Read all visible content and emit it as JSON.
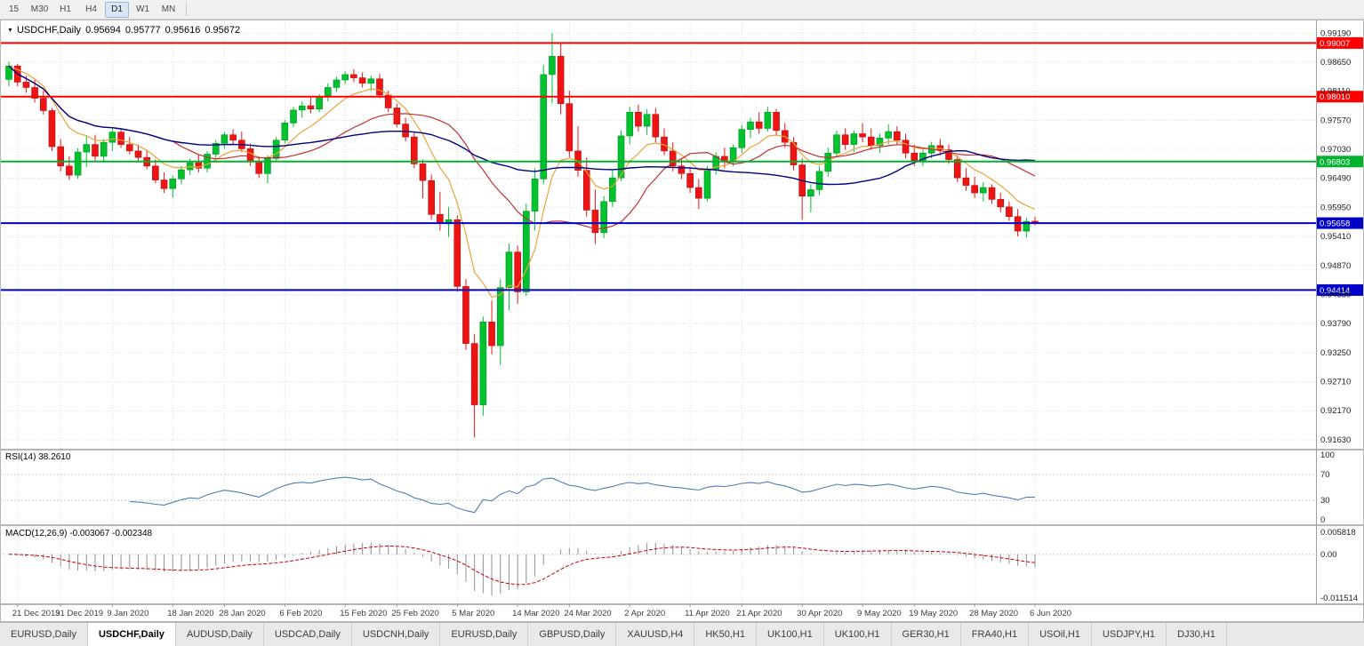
{
  "toolbar": {
    "timeframes": [
      {
        "label": "15",
        "active": false
      },
      {
        "label": "M30",
        "active": false
      },
      {
        "label": "H1",
        "active": false
      },
      {
        "label": "H4",
        "active": false
      },
      {
        "label": "D1",
        "active": true
      },
      {
        "label": "W1",
        "active": false
      },
      {
        "label": "MN",
        "active": false
      }
    ]
  },
  "chart": {
    "title": {
      "menu_icon": "▼",
      "symbol": "USDCHF,Daily",
      "o": "0.95694",
      "h": "0.95777",
      "l": "0.95616",
      "c": "0.95672"
    },
    "price_range": {
      "min": 0.9148,
      "max": 0.9941
    },
    "y_axis_labels": [
      "0.99190",
      "0.98650",
      "0.98110",
      "0.97570",
      "0.97030",
      "0.96490",
      "0.95950",
      "0.95410",
      "0.94870",
      "0.94330",
      "0.93790",
      "0.93250",
      "0.92710",
      "0.92170",
      "0.91630"
    ],
    "levels": [
      {
        "value": 0.99007,
        "label": "0.99007",
        "color": "#FF0000",
        "width": 2,
        "kind": "resistance"
      },
      {
        "value": 0.9801,
        "label": "0.98010",
        "color": "#FF0000",
        "width": 2,
        "kind": "resistance"
      },
      {
        "value": 0.96803,
        "label": "0.96803",
        "color": "#00B22D",
        "width": 2,
        "kind": "pivot"
      },
      {
        "value": 0.95658,
        "label": "0.95658",
        "color": "#0000C8",
        "width": 2,
        "kind": "support"
      },
      {
        "value": 0.94414,
        "label": "0.94414",
        "color": "#0000C8",
        "width": 2,
        "kind": "support"
      }
    ]
  },
  "indicators": {
    "rsi": {
      "label": "RSI(14) 38.2610",
      "period": 14,
      "current": "38.2610",
      "levels": [
        70,
        30
      ],
      "axis": [
        {
          "text": "100",
          "value": 100
        },
        {
          "text": "70",
          "value": 70
        },
        {
          "text": "30",
          "value": 30
        },
        {
          "text": "0",
          "value": 0
        }
      ]
    },
    "macd": {
      "label": "MACD(12,26,9) -0.003067 -0.002348",
      "params": "12,26,9",
      "current_macd": "-0.003067",
      "current_signal": "-0.002348",
      "range": {
        "min": -0.011514,
        "max": 0.005818
      },
      "axis": [
        {
          "text": "0.005818",
          "value": 0.005818
        },
        {
          "text": "0.00",
          "value": 0
        },
        {
          "text": "-0.011514",
          "value": -0.011514
        }
      ]
    }
  },
  "x_axis_labels": [
    {
      "text": "21 Dec 2019",
      "date": "2019-12-21"
    },
    {
      "text": "31 Dec 2019",
      "date": "2019-12-31"
    },
    {
      "text": "9 Jan 2020",
      "date": "2020-01-09"
    },
    {
      "text": "18 Jan 2020",
      "date": "2020-01-18"
    },
    {
      "text": "28 Jan 2020",
      "date": "2020-01-28"
    },
    {
      "text": "6 Feb 2020",
      "date": "2020-02-06"
    },
    {
      "text": "15 Feb 2020",
      "date": "2020-02-15"
    },
    {
      "text": "25 Feb 2020",
      "date": "2020-02-25"
    },
    {
      "text": "5 Mar 2020",
      "date": "2020-03-05"
    },
    {
      "text": "14 Mar 2020",
      "date": "2020-03-14"
    },
    {
      "text": "24 Mar 2020",
      "date": "2020-03-24"
    },
    {
      "text": "2 Apr 2020",
      "date": "2020-04-02"
    },
    {
      "text": "11 Apr 2020",
      "date": "2020-04-11"
    },
    {
      "text": "21 Apr 2020",
      "date": "2020-04-21"
    },
    {
      "text": "30 Apr 2020",
      "date": "2020-04-30"
    },
    {
      "text": "9 May 2020",
      "date": "2020-05-09"
    },
    {
      "text": "19 May 2020",
      "date": "2020-05-19"
    },
    {
      "text": "28 May 2020",
      "date": "2020-05-28"
    },
    {
      "text": "6 Jun 2020",
      "date": "2020-06-06"
    }
  ],
  "tabs": {
    "active_index": 1,
    "items": [
      "EURUSD,Daily",
      "USDCHF,Daily",
      "AUDUSD,Daily",
      "USDCAD,Daily",
      "USDCNH,Daily",
      "EURUSD,Daily",
      "GBPUSD,Daily",
      "XAUUSD,H4",
      "HK50,H1",
      "UK100,H1",
      "UK100,H1",
      "GER30,H1",
      "FRA40,H1",
      "USOil,H1",
      "USDJPY,H1",
      "DJ30,H1"
    ]
  },
  "colors": {
    "up": "#00C22E",
    "up_border": "#009422",
    "down": "#EE1414",
    "down_border": "#B80F0F",
    "ma_fast": "#E8A33C",
    "ma_mid": "#C03030",
    "ma_slow": "#000080",
    "rsi_line": "#4D7EB8",
    "macd_hist": "#909090",
    "macd_signal": "#C80000",
    "grid": "#DCDCDC",
    "separator": "#9E9E9E",
    "axis_text": "#1C1C1C",
    "date_text": "#3C3C3C"
  },
  "chart_data": {
    "type": "candlestick",
    "symbol": "USDCHF",
    "timeframe": "Daily",
    "title": "USDCHF,Daily 0.95694 0.95777 0.95616 0.95672",
    "ylim": [
      0.9148,
      0.9941
    ],
    "columns": [
      "date",
      "open",
      "high",
      "low",
      "close"
    ],
    "overlays": [
      {
        "name": "ma-fast",
        "type": "ema",
        "period": 8,
        "color": "#E8A33C"
      },
      {
        "name": "ma-mid",
        "type": "sma",
        "period": 20,
        "color": "#C03030"
      },
      {
        "name": "ma-slow",
        "type": "sma",
        "period": 50,
        "color": "#000080"
      }
    ],
    "bars": [
      [
        "2019-12-20",
        0.9833,
        0.9866,
        0.982,
        0.9858
      ],
      [
        "2019-12-23",
        0.9858,
        0.9862,
        0.982,
        0.9828
      ],
      [
        "2019-12-24",
        0.9828,
        0.984,
        0.9808,
        0.9818
      ],
      [
        "2019-12-26",
        0.9818,
        0.9832,
        0.979,
        0.9798
      ],
      [
        "2019-12-27",
        0.9798,
        0.9812,
        0.9768,
        0.9775
      ],
      [
        "2019-12-30",
        0.9775,
        0.978,
        0.97,
        0.9708
      ],
      [
        "2019-12-31",
        0.9708,
        0.9722,
        0.9662,
        0.9672
      ],
      [
        "2020-01-02",
        0.9672,
        0.969,
        0.9646,
        0.9655
      ],
      [
        "2020-01-03",
        0.9655,
        0.9705,
        0.9648,
        0.9698
      ],
      [
        "2020-01-06",
        0.9698,
        0.9728,
        0.967,
        0.9712
      ],
      [
        "2020-01-07",
        0.9712,
        0.973,
        0.968,
        0.969
      ],
      [
        "2020-01-08",
        0.969,
        0.9722,
        0.9678,
        0.9716
      ],
      [
        "2020-01-09",
        0.9716,
        0.9742,
        0.97,
        0.9735
      ],
      [
        "2020-01-10",
        0.9735,
        0.974,
        0.9706,
        0.9712
      ],
      [
        "2020-01-13",
        0.9712,
        0.9726,
        0.9694,
        0.97
      ],
      [
        "2020-01-14",
        0.97,
        0.9712,
        0.968,
        0.9688
      ],
      [
        "2020-01-15",
        0.9688,
        0.97,
        0.9666,
        0.9672
      ],
      [
        "2020-01-16",
        0.9672,
        0.9684,
        0.964,
        0.9646
      ],
      [
        "2020-01-17",
        0.9646,
        0.966,
        0.9622,
        0.963
      ],
      [
        "2020-01-20",
        0.963,
        0.9655,
        0.9613,
        0.9648
      ],
      [
        "2020-01-21",
        0.9648,
        0.9672,
        0.9638,
        0.9665
      ],
      [
        "2020-01-22",
        0.9665,
        0.9686,
        0.9655,
        0.9678
      ],
      [
        "2020-01-23",
        0.9678,
        0.9694,
        0.966,
        0.9668
      ],
      [
        "2020-01-24",
        0.9668,
        0.97,
        0.966,
        0.9694
      ],
      [
        "2020-01-27",
        0.9694,
        0.972,
        0.9686,
        0.9714
      ],
      [
        "2020-01-28",
        0.9714,
        0.9735,
        0.9704,
        0.973
      ],
      [
        "2020-01-29",
        0.973,
        0.974,
        0.9712,
        0.972
      ],
      [
        "2020-01-30",
        0.972,
        0.9736,
        0.9698,
        0.9704
      ],
      [
        "2020-01-31",
        0.9704,
        0.9714,
        0.9672,
        0.968
      ],
      [
        "2020-02-03",
        0.968,
        0.969,
        0.965,
        0.9658
      ],
      [
        "2020-02-04",
        0.9658,
        0.9692,
        0.964,
        0.9686
      ],
      [
        "2020-02-05",
        0.9686,
        0.9726,
        0.968,
        0.972
      ],
      [
        "2020-02-06",
        0.972,
        0.9758,
        0.9714,
        0.9752
      ],
      [
        "2020-02-07",
        0.9752,
        0.9782,
        0.9744,
        0.9776
      ],
      [
        "2020-02-10",
        0.9776,
        0.9792,
        0.9762,
        0.9784
      ],
      [
        "2020-02-11",
        0.9784,
        0.98,
        0.977,
        0.9778
      ],
      [
        "2020-02-12",
        0.9778,
        0.9806,
        0.9772,
        0.98
      ],
      [
        "2020-02-13",
        0.98,
        0.9826,
        0.9792,
        0.9818
      ],
      [
        "2020-02-14",
        0.9818,
        0.9838,
        0.981,
        0.9832
      ],
      [
        "2020-02-17",
        0.9832,
        0.9848,
        0.9824,
        0.9842
      ],
      [
        "2020-02-18",
        0.9842,
        0.9852,
        0.9828,
        0.9836
      ],
      [
        "2020-02-19",
        0.9836,
        0.9846,
        0.9818,
        0.9826
      ],
      [
        "2020-02-20",
        0.9826,
        0.984,
        0.9812,
        0.9834
      ],
      [
        "2020-02-21",
        0.9834,
        0.9843,
        0.9798,
        0.9804
      ],
      [
        "2020-02-24",
        0.9804,
        0.9812,
        0.9772,
        0.978
      ],
      [
        "2020-02-25",
        0.978,
        0.9788,
        0.9744,
        0.975
      ],
      [
        "2020-02-26",
        0.975,
        0.9762,
        0.9718,
        0.9726
      ],
      [
        "2020-02-27",
        0.9726,
        0.9734,
        0.9668,
        0.9676
      ],
      [
        "2020-02-28",
        0.9676,
        0.9684,
        0.9612,
        0.9645
      ],
      [
        "2020-03-02",
        0.9645,
        0.9656,
        0.9572,
        0.9582
      ],
      [
        "2020-03-03",
        0.9582,
        0.9624,
        0.9552,
        0.9566
      ],
      [
        "2020-03-04",
        0.9566,
        0.9596,
        0.954,
        0.9572
      ],
      [
        "2020-03-05",
        0.9572,
        0.958,
        0.9438,
        0.9448
      ],
      [
        "2020-03-06",
        0.9448,
        0.9462,
        0.933,
        0.9342
      ],
      [
        "2020-03-09",
        0.9342,
        0.936,
        0.9167,
        0.9228
      ],
      [
        "2020-03-10",
        0.9228,
        0.9392,
        0.9208,
        0.9382
      ],
      [
        "2020-03-11",
        0.9382,
        0.9422,
        0.9322,
        0.9338
      ],
      [
        "2020-03-12",
        0.9338,
        0.9462,
        0.9302,
        0.9446
      ],
      [
        "2020-03-13",
        0.9446,
        0.9528,
        0.9404,
        0.9512
      ],
      [
        "2020-03-16",
        0.9512,
        0.9524,
        0.9416,
        0.9438
      ],
      [
        "2020-03-17",
        0.9438,
        0.9602,
        0.943,
        0.9588
      ],
      [
        "2020-03-18",
        0.9588,
        0.9668,
        0.9552,
        0.9648
      ],
      [
        "2020-03-19",
        0.9648,
        0.986,
        0.9638,
        0.9842
      ],
      [
        "2020-03-20",
        0.9842,
        0.9919,
        0.9788,
        0.9876
      ],
      [
        "2020-03-23",
        0.9876,
        0.9901,
        0.9768,
        0.9788
      ],
      [
        "2020-03-24",
        0.9788,
        0.9812,
        0.9688,
        0.97
      ],
      [
        "2020-03-25",
        0.97,
        0.9746,
        0.9652,
        0.9664
      ],
      [
        "2020-03-26",
        0.9664,
        0.9688,
        0.9578,
        0.959
      ],
      [
        "2020-03-27",
        0.959,
        0.9628,
        0.9527,
        0.9548
      ],
      [
        "2020-03-30",
        0.9548,
        0.9616,
        0.9538,
        0.9606
      ],
      [
        "2020-03-31",
        0.9606,
        0.9664,
        0.9596,
        0.965
      ],
      [
        "2020-04-01",
        0.965,
        0.9738,
        0.9644,
        0.9728
      ],
      [
        "2020-04-02",
        0.9728,
        0.9782,
        0.9712,
        0.9772
      ],
      [
        "2020-04-03",
        0.9772,
        0.9786,
        0.9736,
        0.9746
      ],
      [
        "2020-04-06",
        0.9746,
        0.9778,
        0.973,
        0.9768
      ],
      [
        "2020-04-07",
        0.9768,
        0.978,
        0.9716,
        0.9726
      ],
      [
        "2020-04-08",
        0.9726,
        0.9742,
        0.9692,
        0.97
      ],
      [
        "2020-04-09",
        0.97,
        0.9716,
        0.9662,
        0.9672
      ],
      [
        "2020-04-10",
        0.9672,
        0.9686,
        0.9648,
        0.9658
      ],
      [
        "2020-04-13",
        0.9658,
        0.967,
        0.9622,
        0.9632
      ],
      [
        "2020-04-14",
        0.9632,
        0.9648,
        0.9592,
        0.9612
      ],
      [
        "2020-04-15",
        0.9612,
        0.9672,
        0.9606,
        0.9666
      ],
      [
        "2020-04-16",
        0.9666,
        0.9698,
        0.9656,
        0.969
      ],
      [
        "2020-04-17",
        0.969,
        0.9706,
        0.9668,
        0.968
      ],
      [
        "2020-04-20",
        0.968,
        0.9712,
        0.9672,
        0.9706
      ],
      [
        "2020-04-21",
        0.9706,
        0.9748,
        0.9696,
        0.974
      ],
      [
        "2020-04-22",
        0.974,
        0.9762,
        0.9724,
        0.9754
      ],
      [
        "2020-04-23",
        0.9754,
        0.9772,
        0.9732,
        0.9742
      ],
      [
        "2020-04-24",
        0.9742,
        0.9782,
        0.9736,
        0.9772
      ],
      [
        "2020-04-27",
        0.9772,
        0.9778,
        0.9728,
        0.9738
      ],
      [
        "2020-04-28",
        0.9738,
        0.9752,
        0.9706,
        0.9716
      ],
      [
        "2020-04-29",
        0.9716,
        0.9726,
        0.9664,
        0.9674
      ],
      [
        "2020-04-30",
        0.9674,
        0.9686,
        0.9572,
        0.9616
      ],
      [
        "2020-05-01",
        0.9616,
        0.9638,
        0.9586,
        0.9628
      ],
      [
        "2020-05-04",
        0.9628,
        0.9672,
        0.9618,
        0.9662
      ],
      [
        "2020-05-05",
        0.9662,
        0.9706,
        0.9652,
        0.9696
      ],
      [
        "2020-05-06",
        0.9696,
        0.9738,
        0.9688,
        0.973
      ],
      [
        "2020-05-07",
        0.973,
        0.9742,
        0.9702,
        0.9712
      ],
      [
        "2020-05-08",
        0.9712,
        0.9738,
        0.9698,
        0.9732
      ],
      [
        "2020-05-11",
        0.9732,
        0.9752,
        0.9716,
        0.9726
      ],
      [
        "2020-05-12",
        0.9726,
        0.9742,
        0.9702,
        0.971
      ],
      [
        "2020-05-13",
        0.971,
        0.9732,
        0.9696,
        0.9724
      ],
      [
        "2020-05-14",
        0.9724,
        0.975,
        0.9712,
        0.9736
      ],
      [
        "2020-05-15",
        0.9736,
        0.9746,
        0.9712,
        0.972
      ],
      [
        "2020-05-18",
        0.972,
        0.9732,
        0.9686,
        0.9696
      ],
      [
        "2020-05-19",
        0.9696,
        0.9712,
        0.9672,
        0.9682
      ],
      [
        "2020-05-20",
        0.9682,
        0.9702,
        0.9672,
        0.9696
      ],
      [
        "2020-05-21",
        0.9696,
        0.9717,
        0.9686,
        0.971
      ],
      [
        "2020-05-22",
        0.971,
        0.9722,
        0.9692,
        0.9702
      ],
      [
        "2020-05-25",
        0.9702,
        0.9712,
        0.9676,
        0.9684
      ],
      [
        "2020-05-26",
        0.9684,
        0.9692,
        0.9642,
        0.965
      ],
      [
        "2020-05-27",
        0.965,
        0.9668,
        0.9626,
        0.9636
      ],
      [
        "2020-05-28",
        0.9636,
        0.9652,
        0.9612,
        0.9622
      ],
      [
        "2020-05-29",
        0.9622,
        0.9642,
        0.9606,
        0.9632
      ],
      [
        "2020-06-01",
        0.9632,
        0.9638,
        0.9602,
        0.961
      ],
      [
        "2020-06-02",
        0.961,
        0.9622,
        0.9586,
        0.9596
      ],
      [
        "2020-06-03",
        0.9596,
        0.9606,
        0.957,
        0.9578
      ],
      [
        "2020-06-04",
        0.9578,
        0.9592,
        0.9541,
        0.9551
      ],
      [
        "2020-06-05",
        0.9551,
        0.9576,
        0.9539,
        0.9569
      ],
      [
        "2020-06-08",
        0.95694,
        0.95777,
        0.95616,
        0.95672
      ]
    ]
  }
}
